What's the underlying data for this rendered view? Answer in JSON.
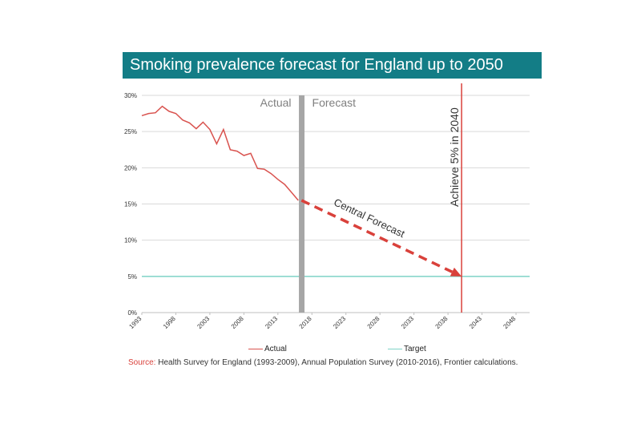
{
  "chart_data": {
    "type": "line",
    "title": "Smoking prevalence forecast for England up to 2050",
    "xlabel": "",
    "ylabel": "",
    "xlim": [
      1993,
      2050
    ],
    "ylim": [
      0,
      30
    ],
    "y_ticks": [
      0,
      5,
      10,
      15,
      20,
      25,
      30
    ],
    "y_tick_labels": [
      "0%",
      "5%",
      "10%",
      "15%",
      "20%",
      "25%",
      "30%"
    ],
    "x_ticks": [
      1993,
      1998,
      2003,
      2008,
      2013,
      2018,
      2023,
      2028,
      2033,
      2038,
      2043,
      2048
    ],
    "x_tick_labels": [
      "1993",
      "1998",
      "2003",
      "2008",
      "2013",
      "2018",
      "2023",
      "2028",
      "2033",
      "2038",
      "2043",
      "2048"
    ],
    "grid": true,
    "series": [
      {
        "name": "Actual",
        "color": "#d9534f",
        "x": [
          1993,
          1994,
          1995,
          1996,
          1997,
          1998,
          1999,
          2000,
          2001,
          2002,
          2003,
          2004,
          2005,
          2006,
          2007,
          2008,
          2009,
          2010,
          2011,
          2012,
          2013,
          2014,
          2015,
          2016
        ],
        "values": [
          27.2,
          27.5,
          27.6,
          28.5,
          27.8,
          27.5,
          26.6,
          26.2,
          25.4,
          26.3,
          25.3,
          23.3,
          25.3,
          22.5,
          22.3,
          21.7,
          22.0,
          19.9,
          19.8,
          19.2,
          18.4,
          17.7,
          16.6,
          15.5
        ]
      },
      {
        "name": "Target",
        "color": "#7fd3c8",
        "x": [
          1993,
          2050
        ],
        "values": [
          5,
          5
        ]
      }
    ],
    "forecast": {
      "label": "Central Forecast",
      "color": "#d9413b",
      "x": [
        2016,
        2040
      ],
      "values": [
        15.5,
        5
      ]
    },
    "divider": {
      "x": 2016.5,
      "left_label": "Actual",
      "right_label": "Forecast",
      "color": "#a6a6a6"
    },
    "milestone": {
      "x": 2040,
      "label": "Achieve 5% in 2040",
      "color": "#d9413b"
    },
    "legend": [
      {
        "name": "Actual",
        "color": "#d9534f"
      },
      {
        "name": "Target",
        "color": "#7fd3c8"
      }
    ]
  },
  "header": {
    "title": "Smoking prevalence forecast for England up to 2050",
    "bg_color": "#137d86"
  },
  "source": {
    "label": "Source:",
    "text": " Health Survey for England (1993-2009), Annual Population Survey (2010-2016), Frontier calculations."
  }
}
